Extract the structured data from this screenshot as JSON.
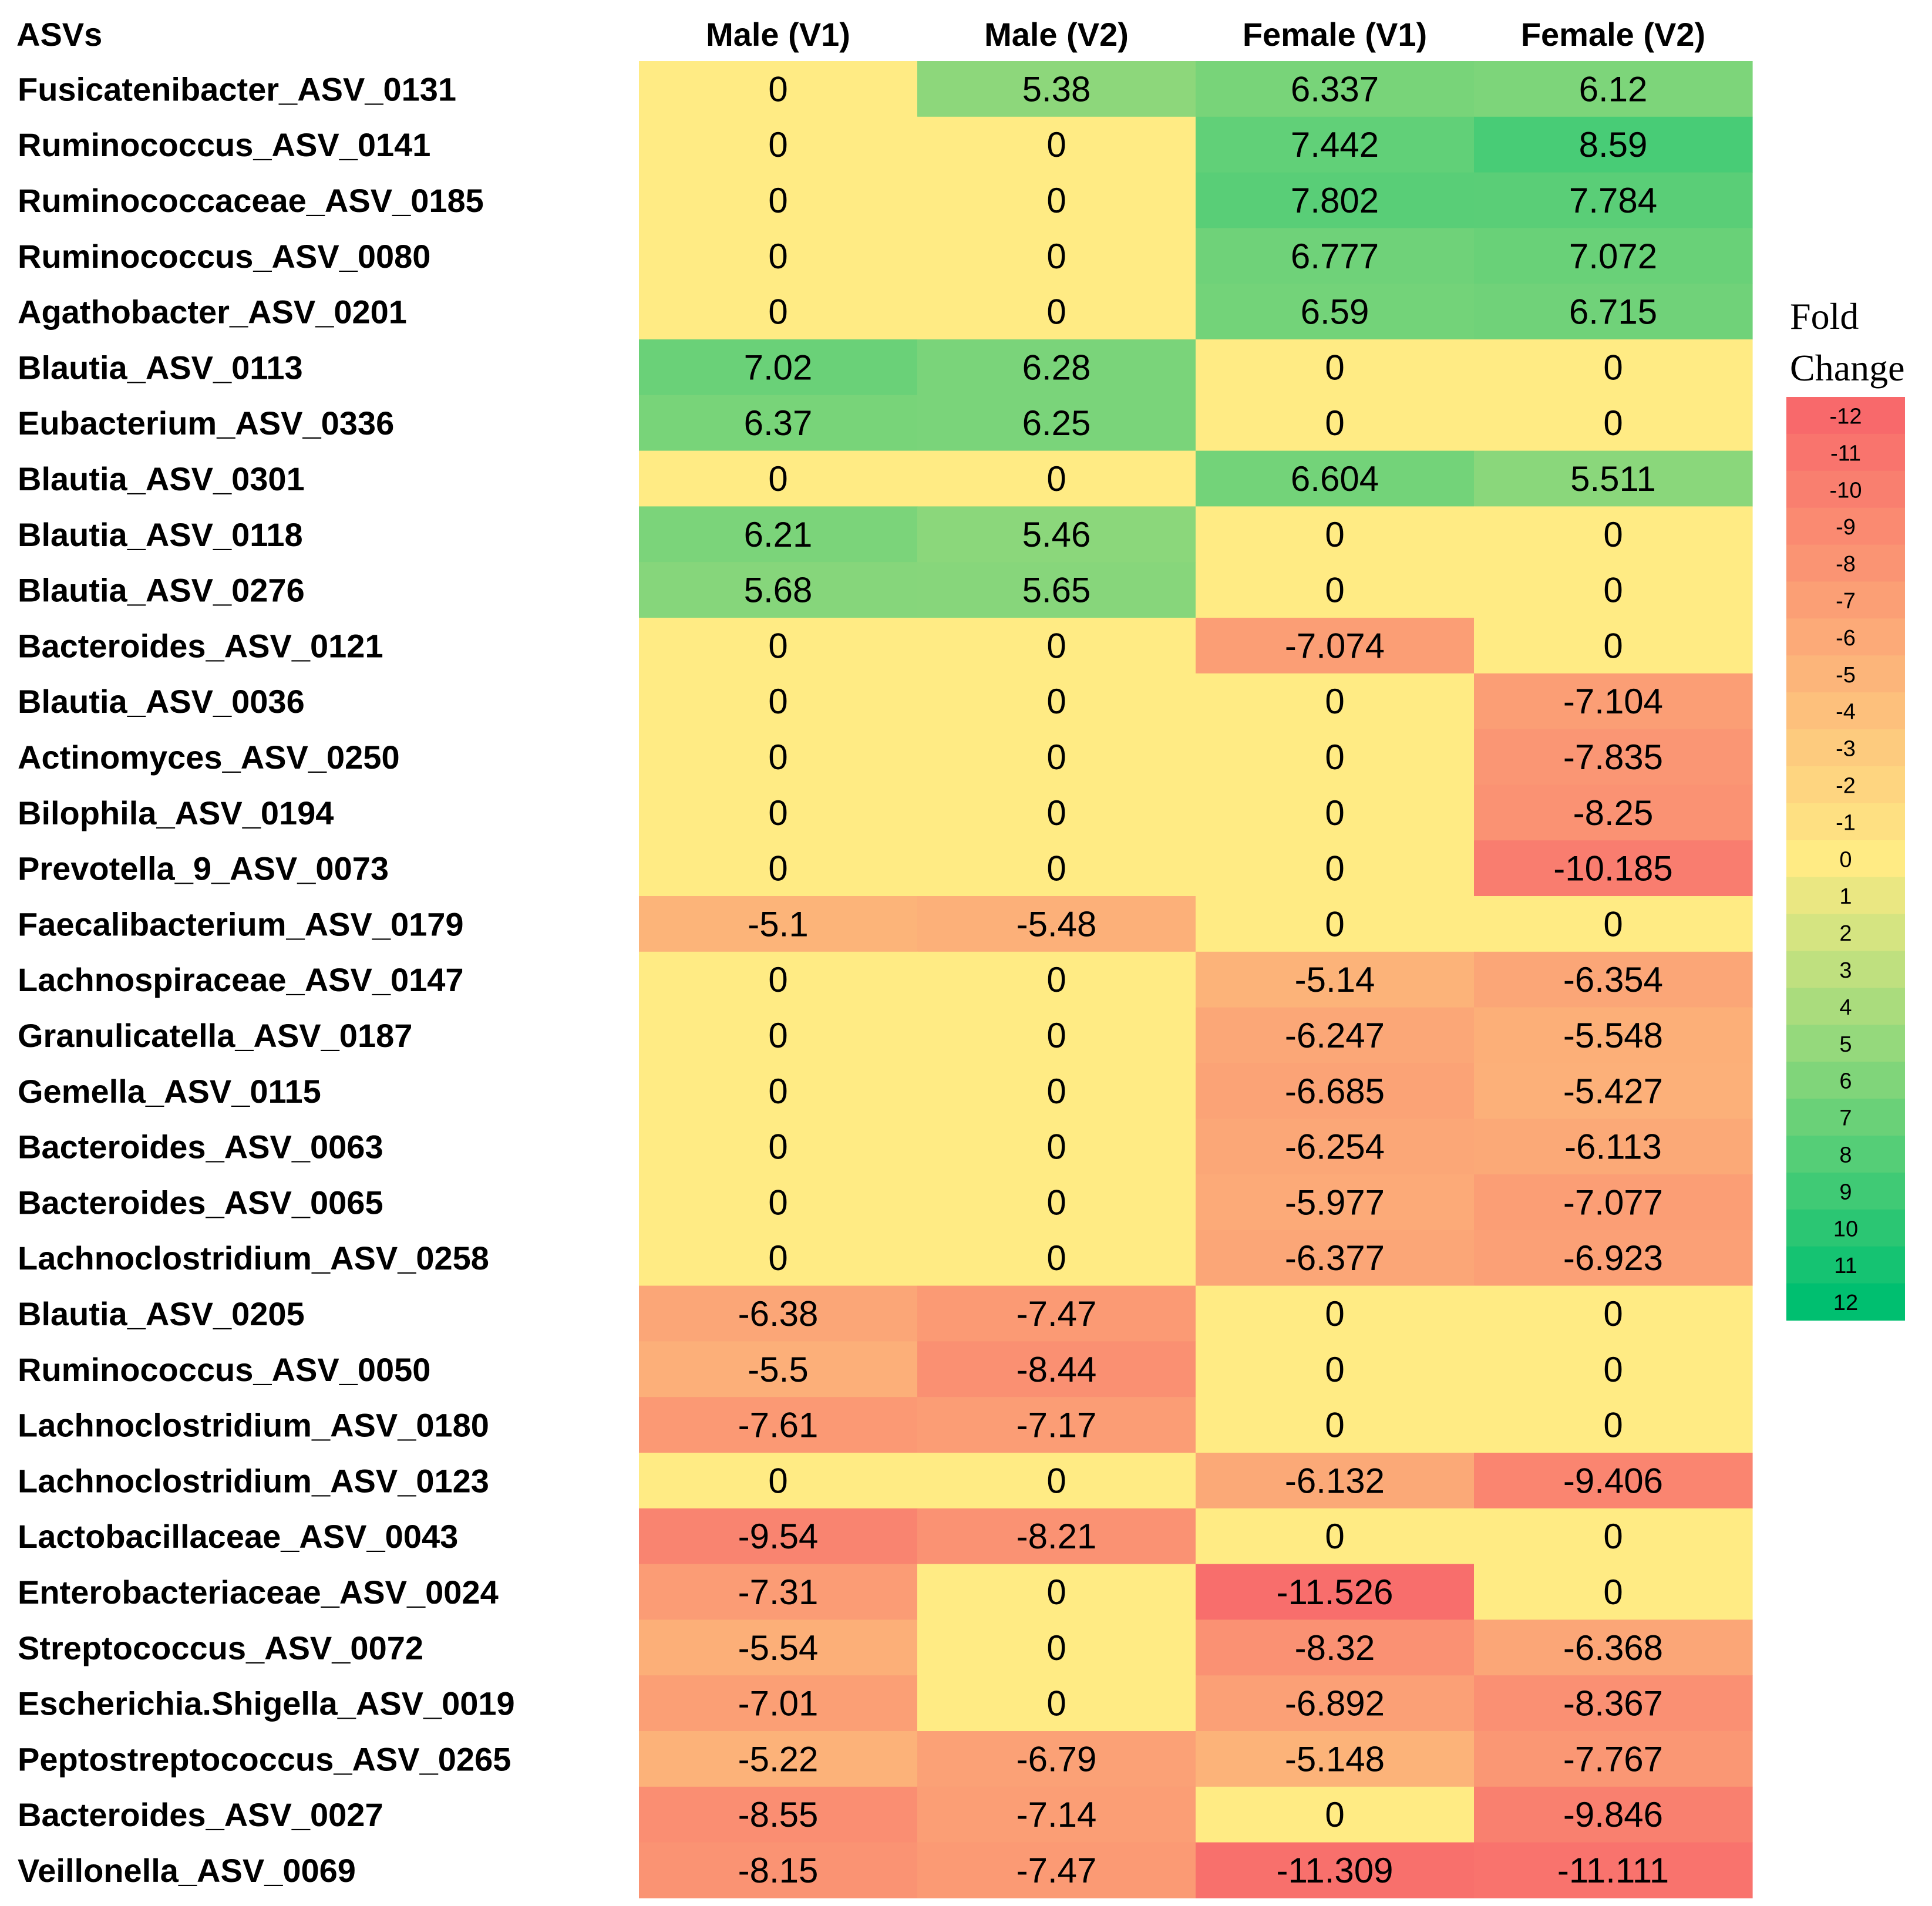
{
  "chart_data": {
    "type": "heatmap",
    "corner_label": "ASVs",
    "columns": [
      "Male (V1)",
      "Male (V2)",
      "Female (V1)",
      "Female (V2)"
    ],
    "rows": [
      {
        "asv": "Fusicatenibacter_ASV_0131",
        "values": [
          "0",
          "5.38",
          "6.337",
          "6.12"
        ]
      },
      {
        "asv": "Ruminococcus_ASV_0141",
        "values": [
          "0",
          "0",
          "7.442",
          "8.59"
        ]
      },
      {
        "asv": "Ruminococcaceae_ASV_0185",
        "values": [
          "0",
          "0",
          "7.802",
          "7.784"
        ]
      },
      {
        "asv": "Ruminococcus_ASV_0080",
        "values": [
          "0",
          "0",
          "6.777",
          "7.072"
        ]
      },
      {
        "asv": "Agathobacter_ASV_0201",
        "values": [
          "0",
          "0",
          "6.59",
          "6.715"
        ]
      },
      {
        "asv": "Blautia_ASV_0113",
        "values": [
          "7.02",
          "6.28",
          "0",
          "0"
        ]
      },
      {
        "asv": "Eubacterium_ASV_0336",
        "values": [
          "6.37",
          "6.25",
          "0",
          "0"
        ]
      },
      {
        "asv": "Blautia_ASV_0301",
        "values": [
          "0",
          "0",
          "6.604",
          "5.511"
        ]
      },
      {
        "asv": "Blautia_ASV_0118",
        "values": [
          "6.21",
          "5.46",
          "0",
          "0"
        ]
      },
      {
        "asv": "Blautia_ASV_0276",
        "values": [
          "5.68",
          "5.65",
          "0",
          "0"
        ]
      },
      {
        "asv": "Bacteroides_ASV_0121",
        "values": [
          "0",
          "0",
          "-7.074",
          "0"
        ]
      },
      {
        "asv": "Blautia_ASV_0036",
        "values": [
          "0",
          "0",
          "0",
          "-7.104"
        ]
      },
      {
        "asv": "Actinomyces_ASV_0250",
        "values": [
          "0",
          "0",
          "0",
          "-7.835"
        ]
      },
      {
        "asv": "Bilophila_ASV_0194",
        "values": [
          "0",
          "0",
          "0",
          "-8.25"
        ]
      },
      {
        "asv": "Prevotella_9_ASV_0073",
        "values": [
          "0",
          "0",
          "0",
          "-10.185"
        ]
      },
      {
        "asv": "Faecalibacterium_ASV_0179",
        "values": [
          "-5.1",
          "-5.48",
          "0",
          "0"
        ]
      },
      {
        "asv": "Lachnospiraceae_ASV_0147",
        "values": [
          "0",
          "0",
          "-5.14",
          "-6.354"
        ]
      },
      {
        "asv": "Granulicatella_ASV_0187",
        "values": [
          "0",
          "0",
          "-6.247",
          "-5.548"
        ]
      },
      {
        "asv": "Gemella_ASV_0115",
        "values": [
          "0",
          "0",
          "-6.685",
          "-5.427"
        ]
      },
      {
        "asv": "Bacteroides_ASV_0063",
        "values": [
          "0",
          "0",
          "-6.254",
          "-6.113"
        ]
      },
      {
        "asv": "Bacteroides_ASV_0065",
        "values": [
          "0",
          "0",
          "-5.977",
          "-7.077"
        ]
      },
      {
        "asv": "Lachnoclostridium_ASV_0258",
        "values": [
          "0",
          "0",
          "-6.377",
          "-6.923"
        ]
      },
      {
        "asv": "Blautia_ASV_0205",
        "values": [
          "-6.38",
          "-7.47",
          "0",
          "0"
        ]
      },
      {
        "asv": "Ruminococcus_ASV_0050",
        "values": [
          "-5.5",
          "-8.44",
          "0",
          "0"
        ]
      },
      {
        "asv": "Lachnoclostridium_ASV_0180",
        "values": [
          "-7.61",
          "-7.17",
          "0",
          "0"
        ]
      },
      {
        "asv": "Lachnoclostridium_ASV_0123",
        "values": [
          "0",
          "0",
          "-6.132",
          "-9.406"
        ]
      },
      {
        "asv": "Lactobacillaceae_ASV_0043",
        "values": [
          "-9.54",
          "-8.21",
          "0",
          "0"
        ]
      },
      {
        "asv": "Enterobacteriaceae_ASV_0024",
        "values": [
          "-7.31",
          "0",
          "-11.526",
          "0"
        ]
      },
      {
        "asv": "Streptococcus_ASV_0072",
        "values": [
          "-5.54",
          "0",
          "-8.32",
          "-6.368"
        ]
      },
      {
        "asv": "Escherichia.Shigella_ASV_0019",
        "values": [
          "-7.01",
          "0",
          "-6.892",
          "-8.367"
        ]
      },
      {
        "asv": "Peptostreptococcus_ASV_0265",
        "values": [
          "-5.22",
          "-6.79",
          "-5.148",
          "-7.767"
        ]
      },
      {
        "asv": "Bacteroides_ASV_0027",
        "values": [
          "-8.55",
          "-7.14",
          "0",
          "-9.846"
        ]
      },
      {
        "asv": "Veillonella_ASV_0069",
        "values": [
          "-8.15",
          "-7.47",
          "-11.309",
          "-11.111"
        ]
      }
    ],
    "legend": {
      "title_line1": "Fold",
      "title_line2": "Change",
      "ticks": [
        "-12",
        "-11",
        "-10",
        "-9",
        "-8",
        "-7",
        "-6",
        "-5",
        "-4",
        "-3",
        "-2",
        "-1",
        "0",
        "1",
        "2",
        "3",
        "4",
        "5",
        "6",
        "7",
        "8",
        "9",
        "10",
        "11",
        "12"
      ],
      "range": [
        -12,
        12
      ],
      "placement": "right"
    },
    "colors": {
      "negative_max": "#f8696b",
      "zero": "#ffeb84",
      "positive_max": "#00bf70",
      "text": "#000000"
    }
  }
}
